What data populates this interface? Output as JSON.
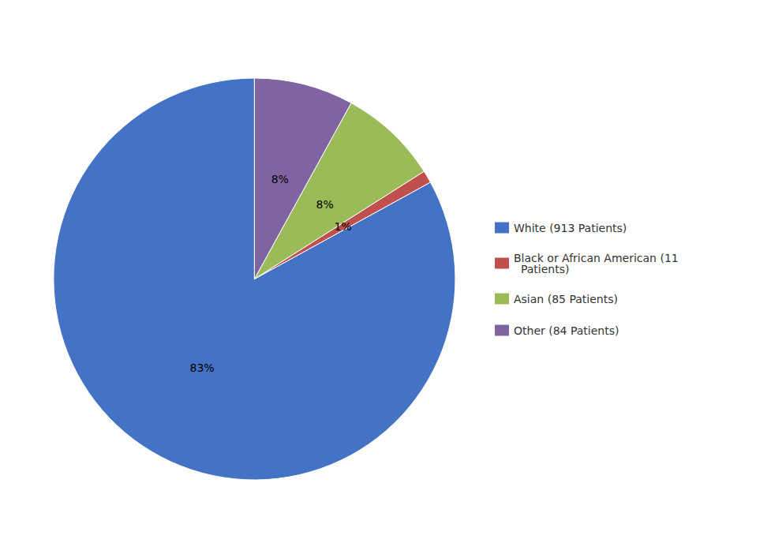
{
  "chart_data": {
    "type": "pie",
    "categories": [
      "White (913 Patients)",
      "Black or African American (11\n  Patients)",
      "Asian (85 Patients)",
      "Other (84 Patients)"
    ],
    "values": [
      83,
      1,
      8,
      8
    ],
    "value_labels": [
      "83%",
      "1%",
      "8%",
      "8%"
    ],
    "colors": [
      "#4472C4",
      "#C0504D",
      "#9BBB59",
      "#8064A2"
    ],
    "data_labels": true,
    "legend": "right"
  }
}
